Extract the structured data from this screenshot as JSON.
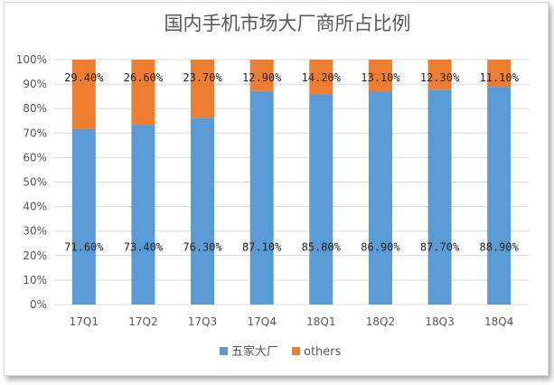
{
  "chart_data": {
    "type": "bar",
    "stacked": true,
    "percent": true,
    "title": "国内手机市场大厂商所占比例",
    "categories": [
      "17Q1",
      "17Q2",
      "17Q3",
      "17Q4",
      "18Q1",
      "18Q2",
      "18Q3",
      "18Q4"
    ],
    "series": [
      {
        "name": "五家大厂",
        "color": "#5b9bd5",
        "values": [
          71.6,
          73.4,
          76.3,
          87.1,
          85.8,
          86.9,
          87.7,
          88.9
        ],
        "labels": [
          "71.60%",
          "73.40%",
          "76.30%",
          "87.10%",
          "85.80%",
          "86.90%",
          "87.70%",
          "88.90%"
        ]
      },
      {
        "name": "others",
        "color": "#ed7d31",
        "values": [
          29.4,
          26.6,
          23.7,
          12.9,
          14.2,
          13.1,
          12.3,
          11.1
        ],
        "labels": [
          "29.40%",
          "26.60%",
          "23.70%",
          "12.90%",
          "14.20%",
          "13.10%",
          "12.30%",
          "11.10%"
        ]
      }
    ],
    "y_ticks": [
      "0%",
      "10%",
      "20%",
      "30%",
      "40%",
      "50%",
      "60%",
      "70%",
      "80%",
      "90%",
      "100%"
    ],
    "ylim": [
      0,
      100
    ],
    "grid": true,
    "legend_position": "bottom"
  }
}
